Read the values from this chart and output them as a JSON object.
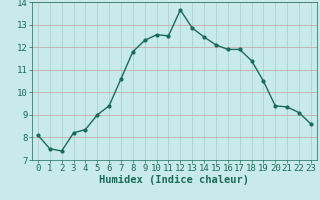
{
  "x": [
    0,
    1,
    2,
    3,
    4,
    5,
    6,
    7,
    8,
    9,
    10,
    11,
    12,
    13,
    14,
    15,
    16,
    17,
    18,
    19,
    20,
    21,
    22,
    23
  ],
  "y": [
    8.1,
    7.5,
    7.4,
    8.2,
    8.35,
    9.0,
    9.4,
    10.6,
    11.8,
    12.3,
    12.55,
    12.5,
    13.65,
    12.85,
    12.45,
    12.1,
    11.9,
    11.9,
    11.4,
    10.5,
    9.4,
    9.35,
    9.1,
    8.6
  ],
  "line_color": "#1a6b5a",
  "marker": "o",
  "marker_size": 2.0,
  "bg_color": "#c8eaea",
  "xlabel": "Humidex (Indice chaleur)",
  "xlabel_fontsize": 7.5,
  "xlabel_color": "#1a6b5a",
  "tick_color": "#1a6b5a",
  "tick_fontsize": 6.5,
  "xlim": [
    -0.5,
    23.5
  ],
  "ylim": [
    7,
    14
  ],
  "yticks": [
    7,
    8,
    9,
    10,
    11,
    12,
    13,
    14
  ],
  "xticks": [
    0,
    1,
    2,
    3,
    4,
    5,
    6,
    7,
    8,
    9,
    10,
    11,
    12,
    13,
    14,
    15,
    16,
    17,
    18,
    19,
    20,
    21,
    22,
    23
  ],
  "hgrid_color": "#c0a0a0",
  "vgrid_color": "#a8cccc"
}
